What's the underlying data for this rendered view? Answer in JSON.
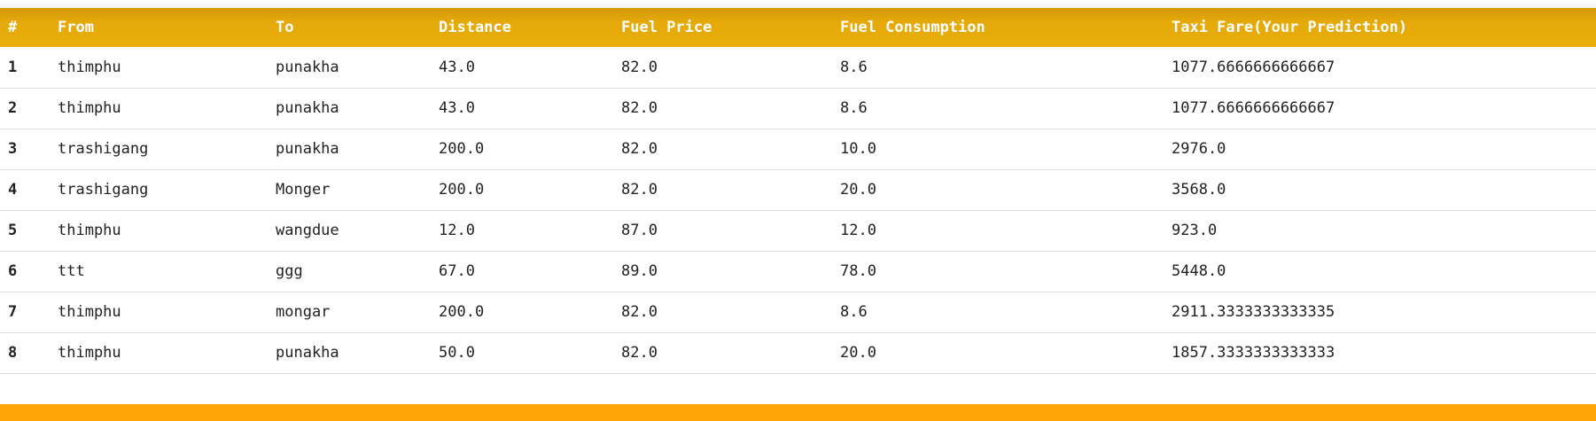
{
  "table": {
    "headers": [
      "#",
      "From",
      "To",
      "Distance",
      "Fuel Price",
      "Fuel Consumption",
      "Taxi Fare(Your Prediction)"
    ],
    "rows": [
      [
        "1",
        "thimphu",
        "punakha",
        "43.0",
        "82.0",
        "8.6",
        "1077.6666666666667"
      ],
      [
        "2",
        "thimphu",
        "punakha",
        "43.0",
        "82.0",
        "8.6",
        "1077.6666666666667"
      ],
      [
        "3",
        "trashigang",
        "punakha",
        "200.0",
        "82.0",
        "10.0",
        "2976.0"
      ],
      [
        "4",
        "trashigang",
        "Monger",
        "200.0",
        "82.0",
        "20.0",
        "3568.0"
      ],
      [
        "5",
        "thimphu",
        "wangdue",
        "12.0",
        "87.0",
        "12.0",
        "923.0"
      ],
      [
        "6",
        "ttt",
        "ggg",
        "67.0",
        "89.0",
        "78.0",
        "5448.0"
      ],
      [
        "7",
        "thimphu",
        "mongar",
        "200.0",
        "82.0",
        "8.6",
        "2911.3333333333335"
      ],
      [
        "8",
        "thimphu",
        "punakha",
        "50.0",
        "82.0",
        "20.0",
        "1857.3333333333333"
      ]
    ]
  },
  "colors": {
    "header_bg": "#e8ad08",
    "footer_bg": "#ffa505",
    "header_text": "#ffffff"
  }
}
